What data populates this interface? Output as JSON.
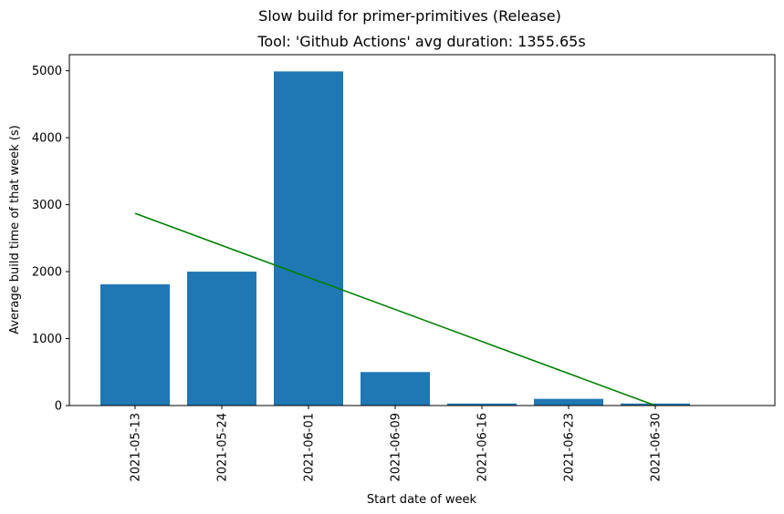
{
  "chart_data": {
    "type": "bar",
    "suptitle": "Slow build for primer-primitives (Release)",
    "title": "Tool: 'Github Actions' avg duration: 1355.65s",
    "xlabel": "Start date of week",
    "ylabel": "Average build time of that week (s)",
    "categories": [
      "2021-05-13",
      "2021-05-24",
      "2021-06-01",
      "2021-06-09",
      "2021-06-16",
      "2021-06-23",
      "2021-06-30"
    ],
    "values": [
      1810,
      2000,
      4990,
      500,
      30,
      100,
      30
    ],
    "ylim": [
      0,
      5240
    ],
    "yticks": [
      0,
      1000,
      2000,
      3000,
      4000,
      5000
    ],
    "bar_color": "#1f77b4",
    "trend": {
      "color": "#008000",
      "x": [
        "2021-05-13",
        "2021-06-30"
      ],
      "y": [
        2870,
        0
      ]
    },
    "grid": false
  }
}
